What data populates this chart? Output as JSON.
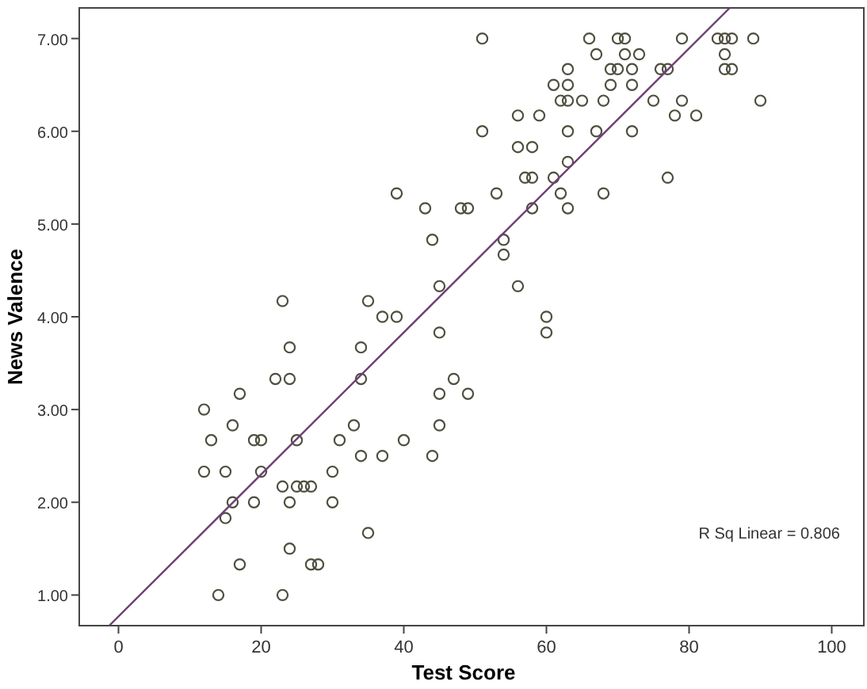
{
  "chart_data": {
    "type": "scatter",
    "xlabel": "Test Score",
    "ylabel": "News Valence",
    "xlim": [
      -5.5,
      104.5
    ],
    "ylim": [
      0.67,
      7.33
    ],
    "xticks": [
      0,
      20,
      40,
      60,
      80,
      100
    ],
    "yticks": [
      {
        "value": 1,
        "label": "1.00"
      },
      {
        "value": 2,
        "label": "2.00"
      },
      {
        "value": 3,
        "label": "3.00"
      },
      {
        "value": 4,
        "label": "4.00"
      },
      {
        "value": 5,
        "label": "5.00"
      },
      {
        "value": 6,
        "label": "6.00"
      },
      {
        "value": 7,
        "label": "7.00"
      }
    ],
    "grid": false,
    "annotations": [
      "R Sq Linear = 0.806"
    ],
    "series": [
      {
        "color": "#4f4f3f",
        "marker": "circle",
        "x": [
          24,
          34,
          22,
          24,
          34,
          17,
          12,
          16,
          33,
          13,
          19,
          20,
          25,
          31,
          40,
          12,
          15,
          20,
          30,
          34,
          37,
          44,
          23,
          25,
          26,
          27,
          16,
          19,
          24,
          30,
          15,
          35,
          24,
          17,
          27,
          28,
          14,
          23,
          45,
          45,
          45,
          23,
          35,
          37,
          39,
          45,
          39,
          43,
          44,
          47,
          49,
          60,
          60,
          51,
          66,
          70,
          71,
          79,
          84,
          85,
          86,
          89,
          67,
          71,
          73,
          85,
          63,
          69,
          70,
          72,
          76,
          77,
          85,
          86,
          61,
          63,
          69,
          72,
          62,
          63,
          65,
          68,
          75,
          79,
          90,
          56,
          59,
          78,
          81,
          51,
          63,
          67,
          72,
          56,
          58,
          63,
          57,
          58,
          61,
          77,
          53,
          62,
          68,
          48,
          49,
          58,
          63,
          54,
          54,
          56
        ],
        "values": [
          3.67,
          3.67,
          3.33,
          3.33,
          3.33,
          3.17,
          3.0,
          2.83,
          2.83,
          2.67,
          2.67,
          2.67,
          2.67,
          2.67,
          2.67,
          2.33,
          2.33,
          2.33,
          2.33,
          2.5,
          2.5,
          2.5,
          2.17,
          2.17,
          2.17,
          2.17,
          2.0,
          2.0,
          2.0,
          2.0,
          1.83,
          1.67,
          1.5,
          1.33,
          1.33,
          1.33,
          1.0,
          1.0,
          3.83,
          3.17,
          2.83,
          4.17,
          4.17,
          4.0,
          4.0,
          4.33,
          5.33,
          5.17,
          4.83,
          3.33,
          3.17,
          4.0,
          3.83,
          7.0,
          7.0,
          7.0,
          7.0,
          7.0,
          7.0,
          7.0,
          7.0,
          7.0,
          6.83,
          6.83,
          6.83,
          6.83,
          6.67,
          6.67,
          6.67,
          6.67,
          6.67,
          6.67,
          6.67,
          6.67,
          6.5,
          6.5,
          6.5,
          6.5,
          6.33,
          6.33,
          6.33,
          6.33,
          6.33,
          6.33,
          6.33,
          6.17,
          6.17,
          6.17,
          6.17,
          6.0,
          6.0,
          6.0,
          6.0,
          5.83,
          5.83,
          5.67,
          5.5,
          5.5,
          5.5,
          5.5,
          5.33,
          5.33,
          5.33,
          5.17,
          5.17,
          5.17,
          5.17,
          4.83,
          4.67,
          4.33
        ]
      },
      {
        "type": "line",
        "color": "#6e3f73",
        "x": [
          -1.3,
          85.7
        ],
        "values": [
          0.67,
          7.33
        ],
        "marker": "none",
        "line_style": "solid"
      }
    ]
  }
}
